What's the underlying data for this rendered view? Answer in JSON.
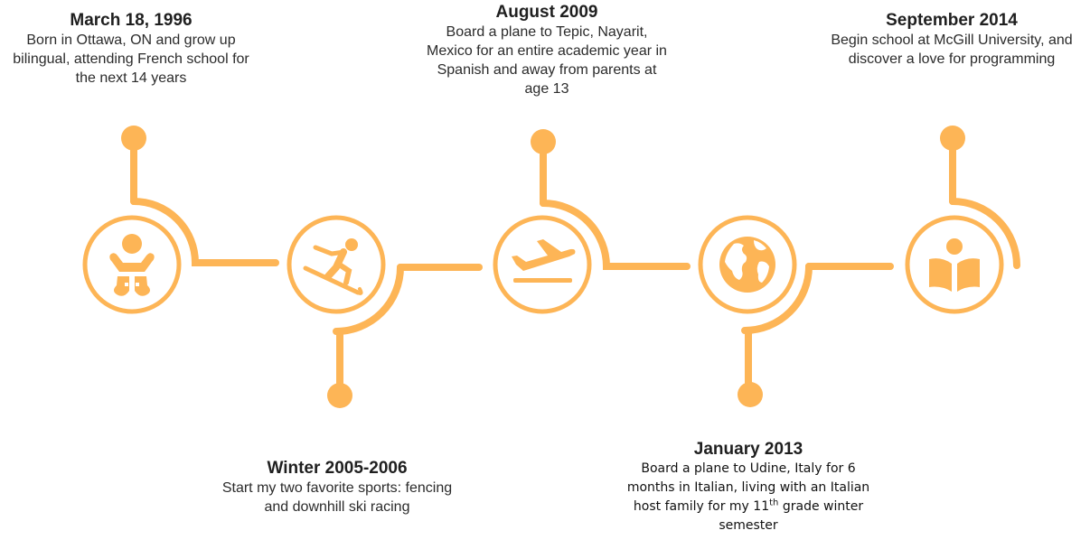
{
  "accent_color": "#FDB556",
  "events": [
    {
      "date": "March 18, 1996",
      "description": "Born in Ottawa, ON and grow up bilingual, attending French school for the next 14 years",
      "icon": "baby-icon"
    },
    {
      "date": "Winter 2005-2006",
      "description": "Start my two favorite sports: fencing and downhill ski racing",
      "icon": "skier-icon"
    },
    {
      "date": "August 2009",
      "description": "Board a plane to Tepic, Nayarit, Mexico for an entire academic year in Spanish and away from parents at age 13",
      "icon": "airplane-departure-icon"
    },
    {
      "date": "January 2013",
      "description_parts": {
        "before": "Board a plane to Udine, Italy for 6 months in Italian, living with an Italian host family for my 11",
        "superscript": "th",
        "after": " grade winter semester"
      },
      "icon": "globe-icon"
    },
    {
      "date": "September 2014",
      "description": "Begin school at McGill University, and discover a love for programming",
      "icon": "reading-person-icon"
    }
  ]
}
